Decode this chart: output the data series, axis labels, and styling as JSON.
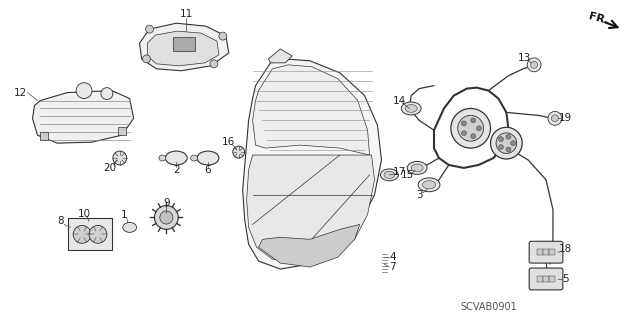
{
  "background_color": "#ffffff",
  "diagram_code": "SCVAB0901",
  "line_color": "#333333",
  "label_color": "#222222",
  "label_fontsize": 7.5,
  "figsize": [
    6.4,
    3.19
  ],
  "dpi": 100
}
